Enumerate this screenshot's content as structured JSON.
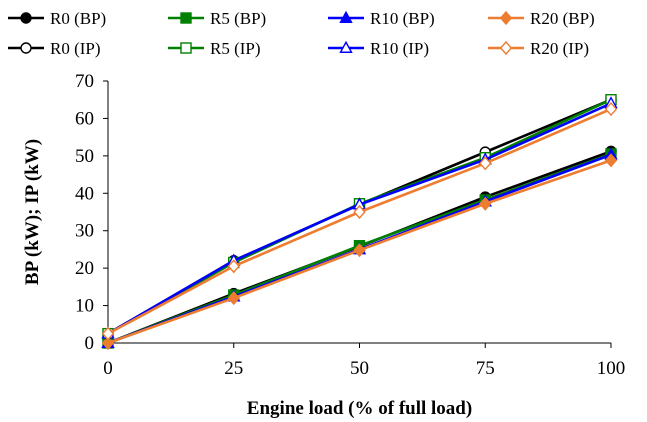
{
  "chart_data": {
    "type": "line",
    "title": "",
    "xlabel": "Engine load (% of full load)",
    "ylabel": "BP (kW); IP (kW)",
    "x": [
      0,
      25,
      50,
      75,
      100
    ],
    "xlim": [
      0,
      100
    ],
    "ylim": [
      0,
      70
    ],
    "xticks": [
      "0",
      "25",
      "50",
      "75",
      "100"
    ],
    "yticks": [
      "0",
      "10",
      "20",
      "30",
      "40",
      "50",
      "60",
      "70"
    ],
    "grid": false,
    "legend_position": "top",
    "series": [
      {
        "name": "R0 (BP)",
        "color": "#000000",
        "marker": "circle",
        "filled": true,
        "values": [
          0,
          13.2,
          25.8,
          39.0,
          51.2
        ]
      },
      {
        "name": "R5 (BP)",
        "color": "#008000",
        "marker": "square",
        "filled": true,
        "values": [
          0,
          12.8,
          26.0,
          38.2,
          50.5
        ]
      },
      {
        "name": "R10 (BP)",
        "color": "#0000ff",
        "marker": "triangle",
        "filled": true,
        "values": [
          0,
          12.4,
          25.0,
          37.8,
          50.3
        ]
      },
      {
        "name": "R20 (BP)",
        "color": "#ed7d31",
        "marker": "diamond",
        "filled": true,
        "values": [
          0,
          12.0,
          24.8,
          37.2,
          48.8
        ]
      },
      {
        "name": "R0 (IP)",
        "color": "#000000",
        "marker": "circle",
        "filled": false,
        "values": [
          2.5,
          22.0,
          37.0,
          51.0,
          65.0
        ]
      },
      {
        "name": "R5 (IP)",
        "color": "#008000",
        "marker": "square",
        "filled": false,
        "values": [
          2.5,
          21.5,
          37.2,
          49.5,
          65.0
        ]
      },
      {
        "name": "R10 (IP)",
        "color": "#0000ff",
        "marker": "triangle",
        "filled": false,
        "values": [
          2.5,
          22.0,
          37.0,
          49.0,
          64.0
        ]
      },
      {
        "name": "R20 (IP)",
        "color": "#ed7d31",
        "marker": "diamond",
        "filled": false,
        "values": [
          2.5,
          20.5,
          35.0,
          48.0,
          62.5
        ]
      }
    ]
  }
}
